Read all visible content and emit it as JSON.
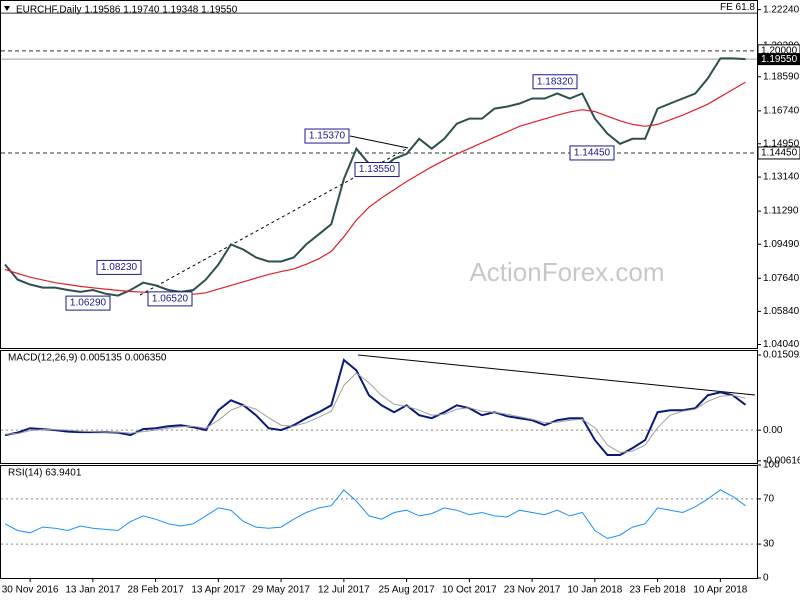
{
  "chart_data": [
    {
      "type": "line",
      "title": "EURCHF,Daily  1.19586 1.19740 1.19348 1.19550",
      "watermark": "ActionForex.com",
      "categories": [
        null,
        null,
        "30 Nov 2016",
        null,
        null,
        null,
        null,
        "13 Jan 2017",
        null,
        null,
        null,
        null,
        "28 Feb 2017",
        null,
        null,
        null,
        null,
        "13 Apr 2017",
        null,
        null,
        null,
        null,
        "29 May 2017",
        null,
        null,
        null,
        null,
        "12 Jul 2017",
        null,
        null,
        null,
        null,
        "25 Aug 2017",
        null,
        null,
        null,
        null,
        "10 Oct 2017",
        null,
        null,
        null,
        null,
        "23 Nov 2017",
        null,
        null,
        null,
        null,
        "10 Jan 2018",
        null,
        null,
        null,
        null,
        "23 Feb 2018",
        null,
        null,
        null,
        null,
        "10 Apr 2018",
        null,
        null
      ],
      "series": [
        {
          "color": "#2f4f4f",
          "values": [
            1.0839,
            1.0757,
            1.073,
            1.0713,
            1.0713,
            1.07,
            1.069,
            1.07,
            1.068,
            1.067,
            1.07,
            1.074,
            1.0725,
            1.07,
            1.069,
            1.07,
            1.0757,
            1.0839,
            1.0948,
            1.092,
            1.0877,
            1.0855,
            1.0855,
            1.0877,
            1.0948,
            1.1003,
            1.1058,
            1.1304,
            1.1468,
            1.1386,
            1.1358,
            1.1413,
            1.144,
            1.1522,
            1.1468,
            1.1522,
            1.1604,
            1.1632,
            1.1632,
            1.1686,
            1.1697,
            1.1714,
            1.1741,
            1.1741,
            1.1768,
            1.1741,
            1.1768,
            1.1632,
            1.155,
            1.1495,
            1.1522,
            1.1522,
            1.1686,
            1.1714,
            1.1741,
            1.1768,
            1.185,
            1.1959,
            1.1959,
            1.1955
          ]
        },
        {
          "color": "#e0202a",
          "values": [
            1.0812,
            1.079,
            1.077,
            1.0755,
            1.074,
            1.073,
            1.072,
            1.0712,
            1.0705,
            1.0698,
            1.0692,
            1.0688,
            1.0684,
            1.068,
            1.0677,
            1.0677,
            1.0685,
            1.0705,
            1.0725,
            1.0745,
            1.0765,
            1.0785,
            1.08,
            1.0815,
            1.084,
            1.087,
            1.091,
            1.099,
            1.108,
            1.115,
            1.12,
            1.1245,
            1.129,
            1.133,
            1.137,
            1.1405,
            1.144,
            1.147,
            1.15,
            1.153,
            1.156,
            1.159,
            1.161,
            1.163,
            1.165,
            1.1668,
            1.168,
            1.167,
            1.1645,
            1.162,
            1.16,
            1.159,
            1.16,
            1.1625,
            1.165,
            1.168,
            1.171,
            1.175,
            1.179,
            1.183
          ]
        }
      ],
      "ylim": [
        1.0385,
        1.226
      ],
      "yticks": [
        {
          "value": 1.2224,
          "label": "1.22240"
        },
        {
          "value": 1.2028,
          "label": "1.20280"
        },
        {
          "value": 1.1859,
          "label": "1.18590"
        },
        {
          "value": 1.1674,
          "label": "1.16740"
        },
        {
          "value": 1.1495,
          "label": "1.14950"
        },
        {
          "value": 1.1314,
          "label": "1.13140"
        },
        {
          "value": 1.1129,
          "label": "1.11290"
        },
        {
          "value": 1.0949,
          "label": "1.09490"
        },
        {
          "value": 1.0764,
          "label": "1.07640"
        },
        {
          "value": 1.0584,
          "label": "1.05840"
        },
        {
          "value": 1.0404,
          "label": "1.04040"
        }
      ],
      "levels": [
        {
          "value": 1.2205,
          "label": "FE 61.8",
          "style": "solid"
        },
        {
          "value": 1.2,
          "label": "1.20000",
          "style": "dashed"
        },
        {
          "value": 1.1445,
          "label": "1.14450",
          "style": "dashed"
        }
      ],
      "price_tag": {
        "value": 1.1955,
        "label": "1.19550"
      },
      "annotations": [
        {
          "value": 1.0823,
          "label": "1.08230"
        },
        {
          "value": 1.0629,
          "label": "1.06290"
        },
        {
          "value": 1.0652,
          "label": "1.06520"
        },
        {
          "value": 1.1537,
          "label": "1.15370"
        },
        {
          "value": 1.1355,
          "label": "1.13550"
        },
        {
          "value": 1.1832,
          "label": "1.18320"
        },
        {
          "value": 1.1445,
          "label": "1.14450"
        }
      ]
    },
    {
      "type": "line",
      "title": "MACD(12,26,9) 0.005135 0.006350",
      "series": [
        {
          "color": "#0a1a7a",
          "values": [
            -0.001,
            -0.0005,
            0.0004,
            0.0002,
            0.0,
            -0.0003,
            -0.0004,
            -0.0004,
            -0.0004,
            -0.0005,
            -0.001,
            0.0002,
            0.0004,
            0.0008,
            0.001,
            0.0006,
            0.0,
            0.004,
            0.006,
            0.005,
            0.003,
            0.0004,
            0.0,
            0.001,
            0.0024,
            0.0036,
            0.005,
            0.0141,
            0.012,
            0.007,
            0.005,
            0.0036,
            0.005,
            0.003,
            0.0024,
            0.0036,
            0.005,
            0.0044,
            0.003,
            0.0036,
            0.0028,
            0.0024,
            0.002,
            0.001,
            0.002,
            0.0024,
            0.0024,
            -0.002,
            -0.005,
            -0.005,
            -0.0036,
            -0.002,
            0.0036,
            0.004,
            0.004,
            0.0044,
            0.007,
            0.0076,
            0.007,
            0.0051
          ]
        },
        {
          "color": "#a0a0a0",
          "values": [
            -0.0008,
            -0.0007,
            -0.0001,
            0.0001,
            0.0001,
            0.0,
            -0.0002,
            -0.0003,
            -0.0004,
            -0.0004,
            -0.0006,
            -0.0003,
            0.0,
            0.0004,
            0.0007,
            0.0008,
            0.0004,
            0.002,
            0.004,
            0.005,
            0.0042,
            0.0025,
            0.001,
            0.0008,
            0.0015,
            0.0026,
            0.0038,
            0.009,
            0.0115,
            0.0095,
            0.007,
            0.0052,
            0.0048,
            0.004,
            0.003,
            0.0032,
            0.0042,
            0.0045,
            0.0038,
            0.0036,
            0.0032,
            0.0027,
            0.0022,
            0.0015,
            0.0016,
            0.002,
            0.0022,
            0.0005,
            -0.003,
            -0.0045,
            -0.0042,
            -0.003,
            0.0005,
            0.003,
            0.0038,
            0.0042,
            0.0058,
            0.0068,
            0.007,
            0.0064
          ]
        }
      ],
      "ylim": [
        -0.0066,
        0.0161
      ],
      "yticks": [
        0.015092,
        {
          "value": 0,
          "label": "0.00"
        },
        -0.006163
      ],
      "grid_lines": [
        0
      ]
    },
    {
      "type": "line",
      "title": "RSI(14) 63.9401",
      "series": [
        {
          "color": "#1e90ff",
          "values": [
            48,
            42,
            40,
            45,
            44,
            42,
            46,
            44,
            43,
            42,
            50,
            55,
            52,
            48,
            46,
            48,
            55,
            62,
            60,
            50,
            45,
            44,
            45,
            52,
            58,
            62,
            64,
            78,
            68,
            55,
            52,
            58,
            60,
            55,
            57,
            62,
            60,
            56,
            58,
            55,
            54,
            60,
            58,
            56,
            60,
            55,
            58,
            42,
            35,
            38,
            45,
            48,
            62,
            60,
            58,
            63,
            70,
            78,
            72,
            64
          ]
        }
      ],
      "ylim": [
        0,
        100
      ],
      "yticks": [
        100,
        70,
        30,
        0
      ],
      "grid_lines": [
        70,
        30
      ]
    }
  ]
}
